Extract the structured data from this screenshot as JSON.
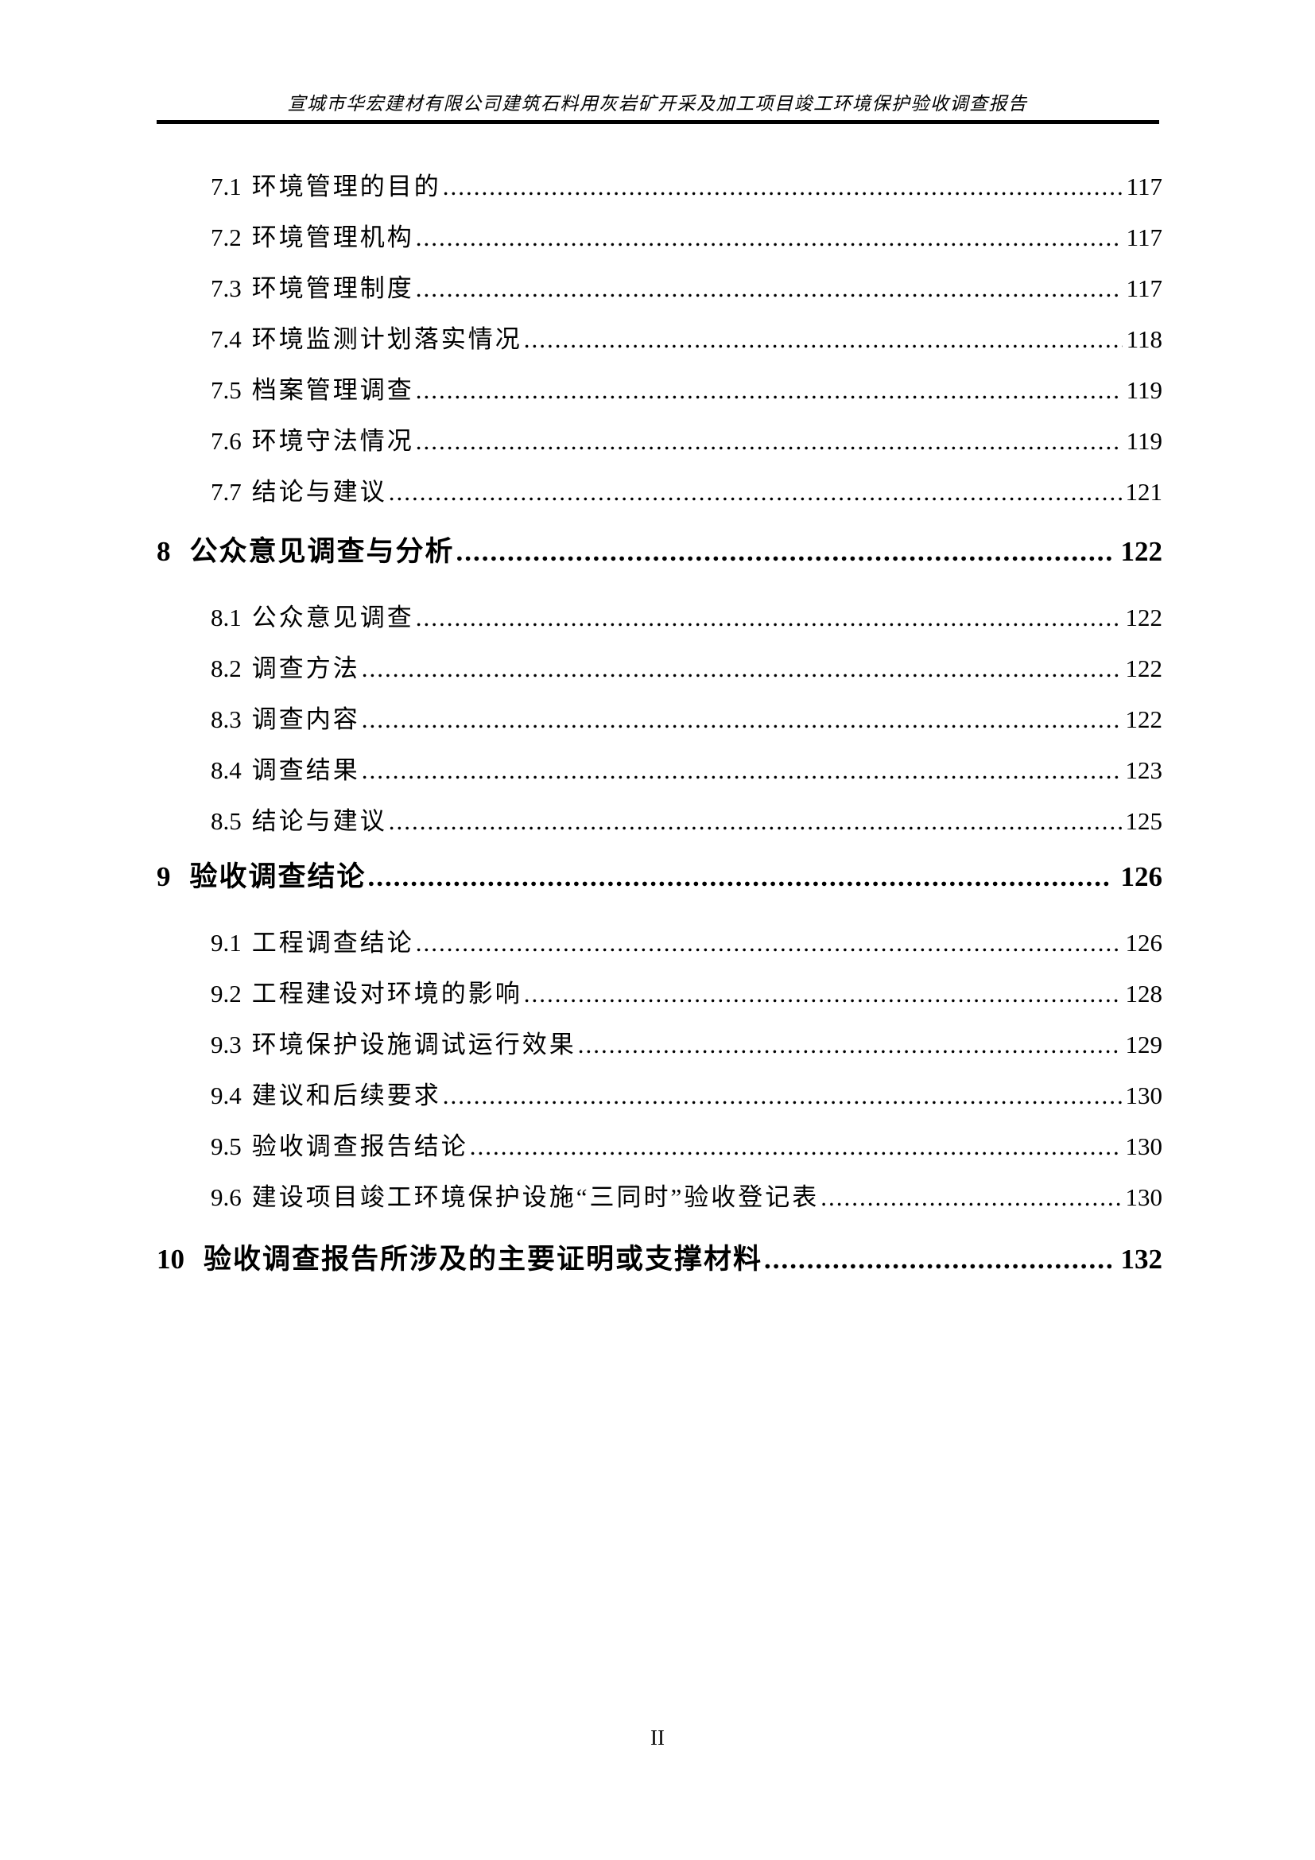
{
  "colors": {
    "text": "#000000",
    "rule": "#000000",
    "background": "#ffffff"
  },
  "header": {
    "title": "宣城市华宏建材有限公司建筑石料用灰岩矿开采及加工项目竣工环境保护验收调查报告"
  },
  "footer": {
    "page_number": "II"
  },
  "toc": {
    "entries": [
      {
        "level": 2,
        "number": "7.1",
        "title": "环境管理的目的",
        "page": "117"
      },
      {
        "level": 2,
        "number": "7.2",
        "title": "环境管理机构",
        "page": "117"
      },
      {
        "level": 2,
        "number": "7.3",
        "title": "环境管理制度",
        "page": "117"
      },
      {
        "level": 2,
        "number": "7.4",
        "title": "环境监测计划落实情况",
        "page": "118"
      },
      {
        "level": 2,
        "number": "7.5",
        "title": "档案管理调查",
        "page": "119"
      },
      {
        "level": 2,
        "number": "7.6",
        "title": "环境守法情况",
        "page": "119"
      },
      {
        "level": 2,
        "number": "7.7",
        "title": "结论与建议",
        "page": "121"
      },
      {
        "level": 1,
        "number": "8",
        "title": "公众意见调查与分析",
        "page": "122"
      },
      {
        "level": 2,
        "number": "8.1",
        "title": "公众意见调查",
        "page": "122"
      },
      {
        "level": 2,
        "number": "8.2",
        "title": "调查方法",
        "page": "122"
      },
      {
        "level": 2,
        "number": "8.3",
        "title": "调查内容",
        "page": "122"
      },
      {
        "level": 2,
        "number": "8.4",
        "title": "调查结果",
        "page": "123"
      },
      {
        "level": 2,
        "number": "8.5",
        "title": "结论与建议",
        "page": "125"
      },
      {
        "level": 1,
        "number": "9",
        "title": "验收调查结论",
        "page": "126"
      },
      {
        "level": 2,
        "number": "9.1",
        "title": "工程调查结论",
        "page": "126"
      },
      {
        "level": 2,
        "number": "9.2",
        "title": "工程建设对环境的影响",
        "page": "128"
      },
      {
        "level": 2,
        "number": "9.3",
        "title": "环境保护设施调试运行效果",
        "page": "129"
      },
      {
        "level": 2,
        "number": "9.4",
        "title": "建议和后续要求",
        "page": "130"
      },
      {
        "level": 2,
        "number": "9.5",
        "title": "验收调查报告结论",
        "page": "130"
      },
      {
        "level": 2,
        "number": "9.6",
        "title": "建设项目竣工环境保护设施“三同时”验收登记表",
        "page": "130"
      },
      {
        "level": 1,
        "number": "10",
        "title": "验收调查报告所涉及的主要证明或支撑材料",
        "page": "132"
      }
    ]
  }
}
